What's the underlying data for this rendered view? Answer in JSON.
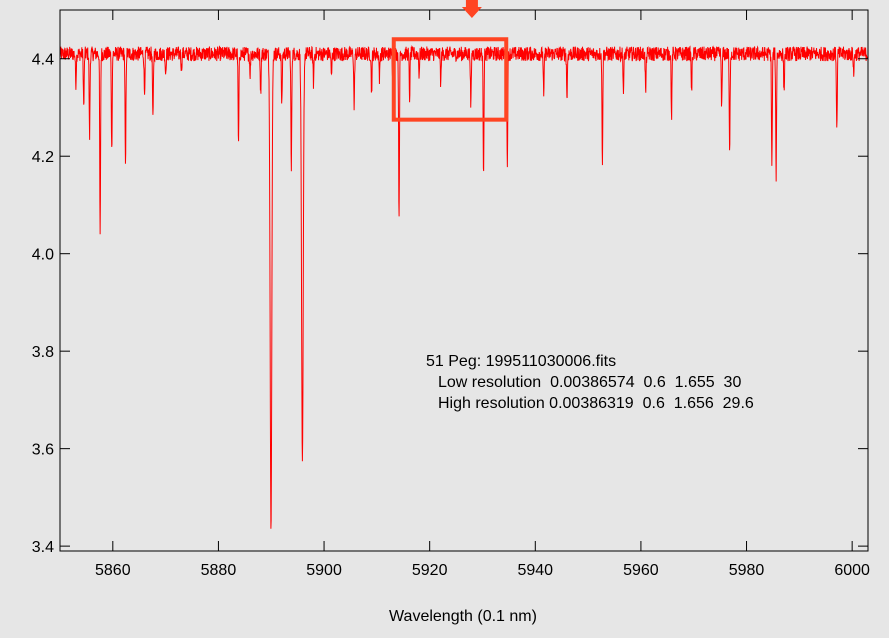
{
  "chart_data": {
    "type": "line",
    "title": "",
    "xlabel": "Wavelength (0.1 nm)",
    "ylabel": "",
    "xlim": [
      5850,
      6003
    ],
    "ylim": [
      3.39,
      4.5
    ],
    "xticks": [
      "5860",
      "5880",
      "5900",
      "5920",
      "5940",
      "5960",
      "5980",
      "6000"
    ],
    "yticks": [
      "3.4",
      "3.6",
      "3.8",
      "4.0",
      "4.2",
      "4.4"
    ],
    "grid": false,
    "legend": "none",
    "series": [
      {
        "color": "#ff0000",
        "continuum": 4.41,
        "x_start": 5850,
        "x_end": 6003,
        "absorption_lines": [
          {
            "x": 5853.0,
            "y": 4.35
          },
          {
            "x": 5854.5,
            "y": 4.3
          },
          {
            "x": 5855.6,
            "y": 4.24
          },
          {
            "x": 5857.6,
            "y": 4.03
          },
          {
            "x": 5859.8,
            "y": 4.21
          },
          {
            "x": 5862.4,
            "y": 4.17
          },
          {
            "x": 5866.0,
            "y": 4.33
          },
          {
            "x": 5867.6,
            "y": 4.27
          },
          {
            "x": 5870.0,
            "y": 4.37
          },
          {
            "x": 5873.0,
            "y": 4.38
          },
          {
            "x": 5883.8,
            "y": 4.22
          },
          {
            "x": 5886.0,
            "y": 4.37
          },
          {
            "x": 5888.0,
            "y": 4.33
          },
          {
            "x": 5889.95,
            "y": 3.445
          },
          {
            "x": 5892.0,
            "y": 4.3
          },
          {
            "x": 5893.8,
            "y": 4.17
          },
          {
            "x": 5895.9,
            "y": 3.56
          },
          {
            "x": 5898.0,
            "y": 4.35
          },
          {
            "x": 5901.4,
            "y": 4.36
          },
          {
            "x": 5905.7,
            "y": 4.3
          },
          {
            "x": 5909.0,
            "y": 4.33
          },
          {
            "x": 5910.5,
            "y": 4.36
          },
          {
            "x": 5913.0,
            "y": 4.37
          },
          {
            "x": 5914.2,
            "y": 4.075
          },
          {
            "x": 5916.2,
            "y": 4.32
          },
          {
            "x": 5918.0,
            "y": 4.37
          },
          {
            "x": 5922.1,
            "y": 4.35
          },
          {
            "x": 5927.8,
            "y": 4.3
          },
          {
            "x": 5930.2,
            "y": 4.17
          },
          {
            "x": 5934.7,
            "y": 4.18
          },
          {
            "x": 5941.6,
            "y": 4.32
          },
          {
            "x": 5946.0,
            "y": 4.32
          },
          {
            "x": 5952.7,
            "y": 4.19
          },
          {
            "x": 5956.7,
            "y": 4.33
          },
          {
            "x": 5960.9,
            "y": 4.33
          },
          {
            "x": 5965.8,
            "y": 4.28
          },
          {
            "x": 5969.6,
            "y": 4.33
          },
          {
            "x": 5975.3,
            "y": 4.3
          },
          {
            "x": 5976.8,
            "y": 4.2
          },
          {
            "x": 5984.8,
            "y": 4.18
          },
          {
            "x": 5985.6,
            "y": 4.16
          },
          {
            "x": 5987.1,
            "y": 4.33
          },
          {
            "x": 5997.1,
            "y": 4.25
          },
          {
            "x": 6000.3,
            "y": 4.37
          }
        ]
      }
    ],
    "annotations": [
      "51 Peg: 199511030006.fits",
      "Low resolution  0.00386574  0.6  1.655  30",
      "High resolution 0.00386319  0.6  1.656  29.6"
    ],
    "highlight_box": {
      "x0": 5913.2,
      "x1": 5934.5,
      "y0": 4.275,
      "y1": 4.44,
      "color": "#ff4422"
    },
    "arrow_marker_x": 5928.0
  }
}
